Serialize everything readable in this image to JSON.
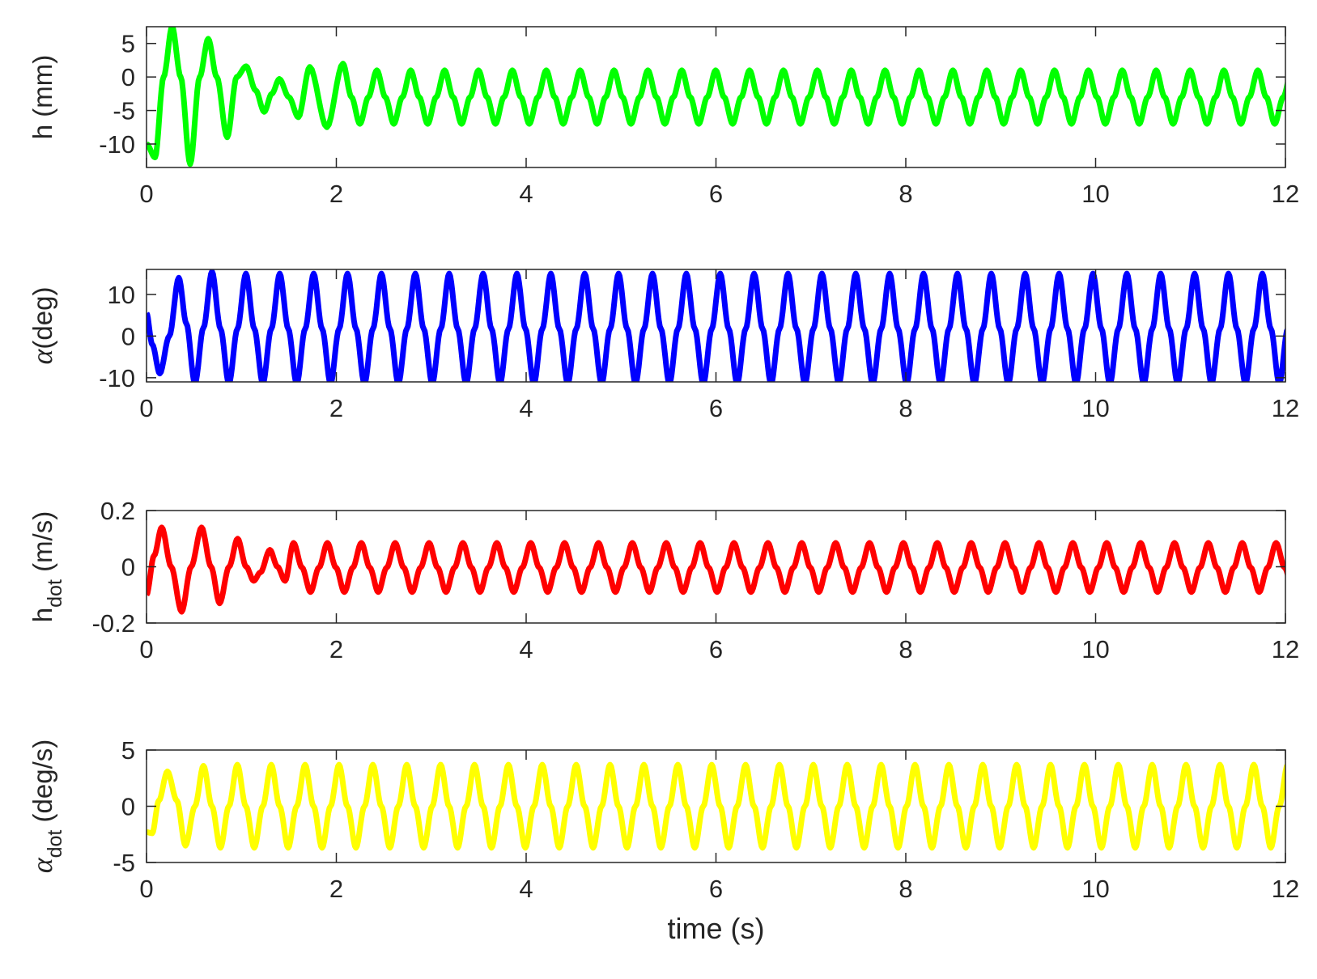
{
  "chart_data": [
    {
      "type": "line",
      "ylabel": "h (mm)",
      "xlabel": "",
      "xlim": [
        0,
        12
      ],
      "ylim": [
        -13.5,
        7.5
      ],
      "xticks": [
        "0",
        "2",
        "4",
        "6",
        "8",
        "10",
        "12"
      ],
      "yticks": [
        {
          "v": 5,
          "label": "5"
        },
        {
          "v": 0,
          "label": "0"
        },
        {
          "v": -5,
          "label": "-5"
        },
        {
          "v": -10,
          "label": "-10"
        }
      ],
      "series": [
        {
          "color": "#00ff00",
          "period_s": 0.357,
          "transient": {
            "start": -10,
            "points": [
              [
                0.0,
                -10
              ],
              [
                0.09,
                -12
              ],
              [
                0.18,
                0
              ],
              [
                0.27,
                7.5
              ],
              [
                0.36,
                0
              ],
              [
                0.46,
                -13
              ],
              [
                0.56,
                0
              ],
              [
                0.65,
                5.7
              ],
              [
                0.74,
                0
              ],
              [
                0.85,
                -9
              ],
              [
                0.95,
                0
              ],
              [
                1.05,
                1.6
              ],
              [
                1.15,
                -2
              ],
              [
                1.24,
                -5.2
              ],
              [
                1.32,
                -2.5
              ],
              [
                1.4,
                -0.3
              ],
              [
                1.5,
                -3
              ],
              [
                1.6,
                -6
              ],
              [
                1.72,
                1.5
              ],
              [
                1.9,
                -7.5
              ],
              [
                2.07,
                2
              ]
            ]
          },
          "steady": {
            "max": 1.0,
            "min": -7.0
          }
        }
      ]
    },
    {
      "type": "line",
      "ylabel": "α(deg)",
      "xlabel": "",
      "xlim": [
        0,
        12
      ],
      "ylim": [
        -11,
        16
      ],
      "xticks": [
        "0",
        "2",
        "4",
        "6",
        "8",
        "10",
        "12"
      ],
      "yticks": [
        {
          "v": 10,
          "label": "10"
        },
        {
          "v": 0,
          "label": "0"
        },
        {
          "v": -10,
          "label": "-10"
        }
      ],
      "series": [
        {
          "color": "#0000ff",
          "period_s": 0.357,
          "transient": {
            "points": [
              [
                0.0,
                5.5
              ],
              [
                0.06,
                -2
              ],
              [
                0.14,
                -9
              ],
              [
                0.24,
                0
              ],
              [
                0.34,
                14
              ],
              [
                0.42,
                3
              ],
              [
                0.51,
                -11.5
              ],
              [
                0.6,
                2
              ],
              [
                0.69,
                15.5
              ]
            ]
          },
          "steady": {
            "max": 15,
            "min": -11.5
          }
        }
      ]
    },
    {
      "type": "line",
      "ylabel": "h",
      "ylabel_sub": "dot",
      "ylabel_unit": " (m/s)",
      "xlabel": "",
      "xlim": [
        0,
        12
      ],
      "ylim": [
        -0.2,
        0.2
      ],
      "xticks": [
        "0",
        "2",
        "4",
        "6",
        "8",
        "10",
        "12"
      ],
      "yticks": [
        {
          "v": 0.2,
          "label": "0.2"
        },
        {
          "v": 0,
          "label": "0"
        },
        {
          "v": -0.2,
          "label": "-0.2"
        }
      ],
      "series": [
        {
          "color": "#ff0000",
          "period_s": 0.357,
          "transient": {
            "points": [
              [
                0.0,
                -0.1
              ],
              [
                0.08,
                0.04
              ],
              [
                0.16,
                0.14
              ],
              [
                0.26,
                0.0
              ],
              [
                0.37,
                -0.16
              ],
              [
                0.47,
                0.0
              ],
              [
                0.58,
                0.14
              ],
              [
                0.68,
                0.0
              ],
              [
                0.77,
                -0.13
              ],
              [
                0.87,
                0.0
              ],
              [
                0.96,
                0.1
              ],
              [
                1.05,
                0.0
              ],
              [
                1.13,
                -0.05
              ],
              [
                1.2,
                -0.02
              ],
              [
                1.3,
                0.06
              ],
              [
                1.38,
                0.0
              ],
              [
                1.46,
                -0.05
              ]
            ]
          },
          "steady": {
            "max": 0.085,
            "min": -0.09
          }
        }
      ]
    },
    {
      "type": "line",
      "ylabel": "α",
      "ylabel_sub": "dot",
      "ylabel_unit": " (deg/s)",
      "xlabel": "time (s)",
      "xlim": [
        0,
        12
      ],
      "ylim": [
        -5,
        5
      ],
      "xticks": [
        "0",
        "2",
        "4",
        "6",
        "8",
        "10",
        "12"
      ],
      "yticks": [
        {
          "v": 5,
          "label": "5"
        },
        {
          "v": 0,
          "label": "0"
        },
        {
          "v": -5,
          "label": "-5"
        }
      ],
      "series": [
        {
          "color": "#ffff00",
          "period_s": 0.357,
          "transient": {
            "points": [
              [
                0.0,
                -2.3
              ],
              [
                0.06,
                -2.4
              ],
              [
                0.13,
                0.5
              ],
              [
                0.22,
                3.1
              ],
              [
                0.32,
                0.5
              ],
              [
                0.41,
                -3.5
              ],
              [
                0.51,
                0.0
              ],
              [
                0.6,
                3.6
              ]
            ]
          },
          "steady": {
            "max": 3.7,
            "min": -3.7
          }
        }
      ]
    }
  ]
}
